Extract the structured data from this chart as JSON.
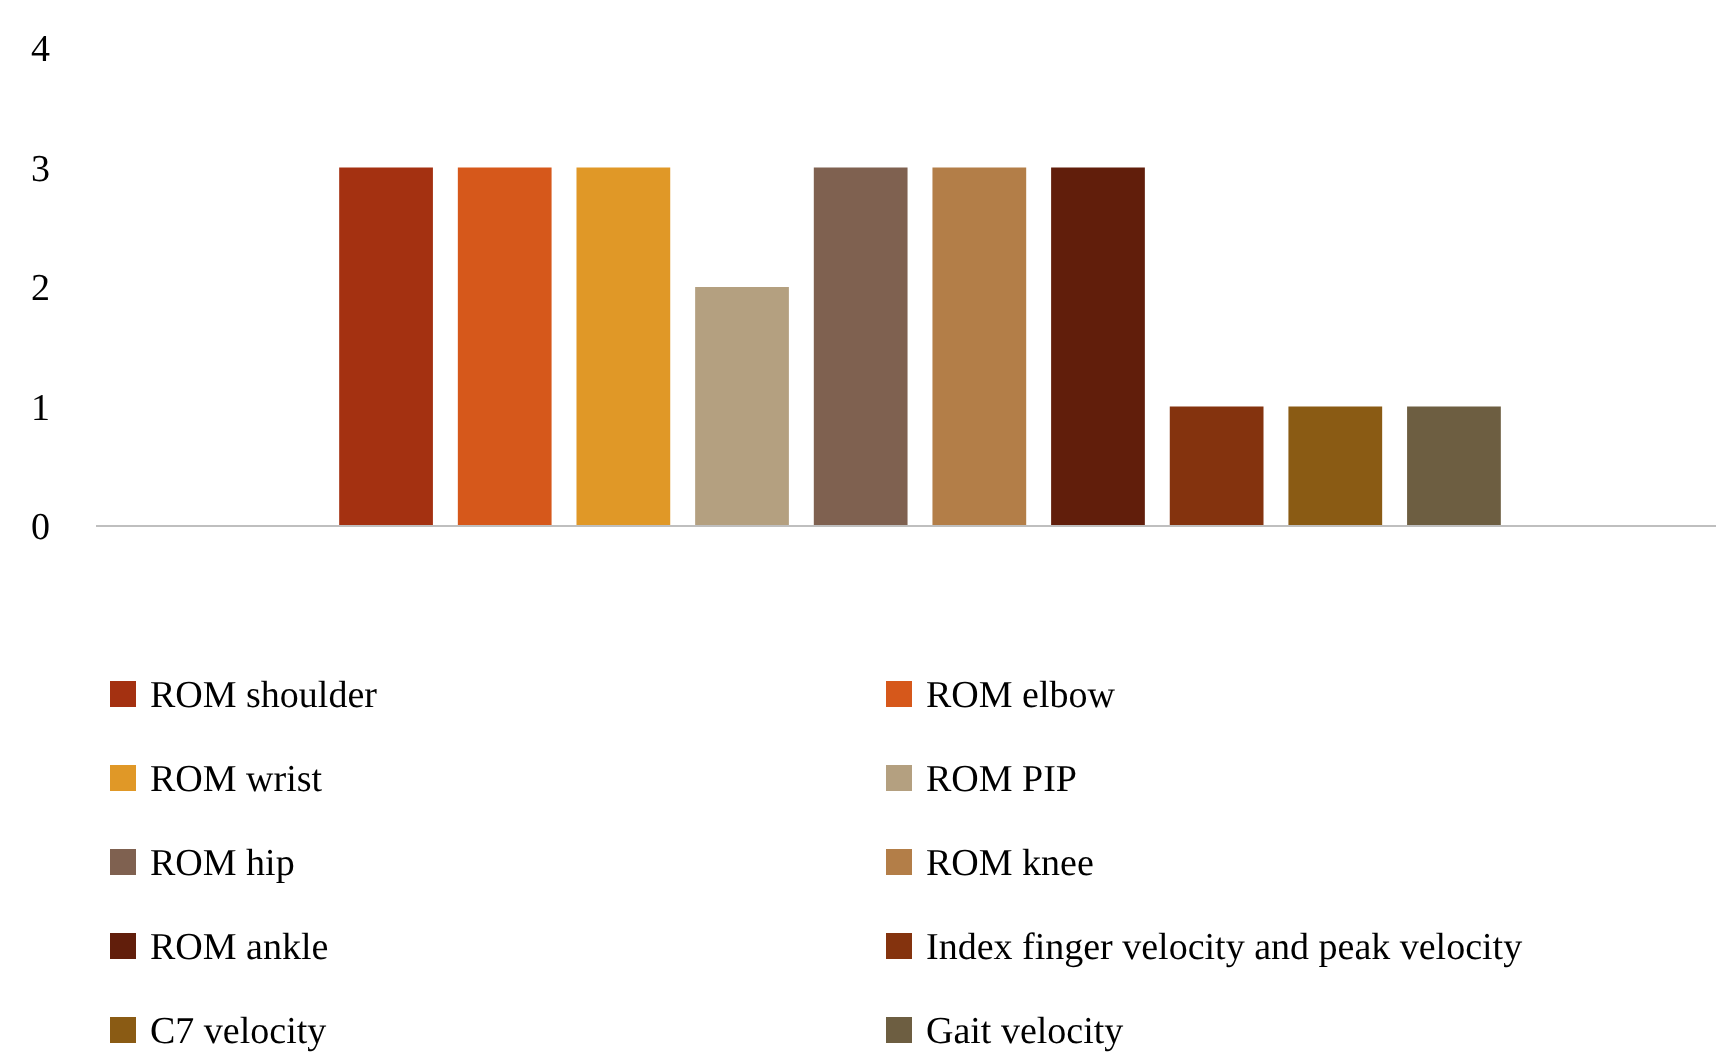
{
  "chart_data": {
    "type": "bar",
    "categories": [
      null
    ],
    "series": [
      {
        "name": "ROM shoulder",
        "color": "#a43111",
        "values": [
          3
        ]
      },
      {
        "name": "ROM elbow",
        "color": "#d6581b",
        "values": [
          3
        ]
      },
      {
        "name": "ROM wrist",
        "color": "#e09827",
        "values": [
          3
        ]
      },
      {
        "name": "ROM PIP",
        "color": "#b4a080",
        "values": [
          2
        ]
      },
      {
        "name": "ROM hip",
        "color": "#7f6150",
        "values": [
          3
        ]
      },
      {
        "name": "ROM knee",
        "color": "#b37e48",
        "values": [
          3
        ]
      },
      {
        "name": "ROM ankle",
        "color": "#611e0b",
        "values": [
          3
        ]
      },
      {
        "name": "Index finger velocity and peak velocity",
        "color": "#84330e",
        "values": [
          1
        ]
      },
      {
        "name": "C7 velocity",
        "color": "#8a5b14",
        "values": [
          1
        ]
      },
      {
        "name": "Gait velocity",
        "color": "#6d5e41",
        "values": [
          1
        ]
      }
    ],
    "ylim": [
      0,
      4
    ],
    "yticks": [
      0,
      1,
      2,
      3,
      4
    ],
    "grid": false,
    "legend": "bottom"
  }
}
